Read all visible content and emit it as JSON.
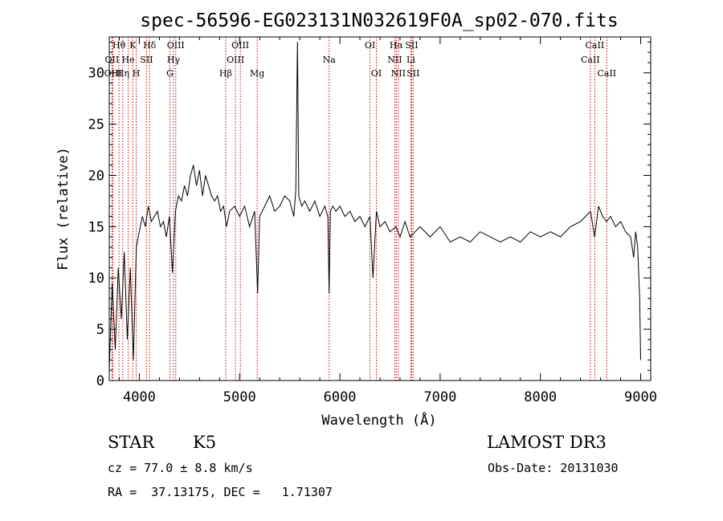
{
  "chart_data": {
    "type": "line",
    "title": "spec-56596-EG023131N032619F0A_sp02-070.fits",
    "xlabel": "Wavelength (Å)",
    "ylabel": "Flux (relative)",
    "xlim": [
      3700,
      9100
    ],
    "ylim": [
      0,
      33.5
    ],
    "x_ticks": [
      4000,
      5000,
      6000,
      7000,
      8000,
      9000
    ],
    "y_ticks": [
      0,
      5,
      10,
      15,
      20,
      25,
      30
    ],
    "grid": false,
    "series": [
      {
        "x": [
          3700,
          3730,
          3760,
          3790,
          3820,
          3850,
          3880,
          3910,
          3940,
          3970,
          4000,
          4030,
          4060,
          4090,
          4120,
          4150,
          4180,
          4210,
          4240,
          4270,
          4300,
          4330,
          4360,
          4390,
          4420,
          4450,
          4480,
          4510,
          4540,
          4570,
          4600,
          4630,
          4660,
          4690,
          4720,
          4750,
          4780,
          4810,
          4840,
          4870,
          4900,
          4950,
          5000,
          5050,
          5100,
          5150,
          5180,
          5200,
          5250,
          5300,
          5350,
          5400,
          5450,
          5500,
          5540,
          5560,
          5577,
          5590,
          5620,
          5650,
          5700,
          5750,
          5800,
          5850,
          5880,
          5893,
          5906,
          5930,
          5960,
          6000,
          6050,
          6100,
          6150,
          6200,
          6250,
          6300,
          6330,
          6365,
          6400,
          6450,
          6500,
          6560,
          6600,
          6650,
          6700,
          6750,
          6800,
          6900,
          7000,
          7100,
          7200,
          7300,
          7400,
          7500,
          7600,
          7700,
          7800,
          7900,
          8000,
          8100,
          8200,
          8300,
          8400,
          8450,
          8500,
          8540,
          8580,
          8620,
          8660,
          8700,
          8750,
          8800,
          8850,
          8900,
          8930,
          8950,
          8970,
          8990,
          9000
        ],
        "y": [
          1.0,
          9.5,
          3.0,
          11.0,
          6.0,
          12.5,
          4.0,
          11.0,
          2.0,
          13.0,
          14.5,
          16.0,
          15.0,
          17.0,
          15.5,
          16.0,
          16.5,
          15.0,
          15.5,
          14.0,
          16.0,
          10.5,
          16.5,
          18.0,
          17.5,
          19.0,
          18.0,
          20.0,
          21.0,
          19.0,
          20.5,
          18.0,
          20.0,
          19.0,
          18.0,
          17.5,
          18.0,
          16.5,
          17.0,
          15.0,
          16.5,
          17.0,
          16.0,
          17.0,
          15.0,
          16.5,
          8.5,
          16.0,
          17.0,
          18.0,
          16.5,
          17.0,
          18.0,
          17.5,
          16.0,
          18.5,
          33.0,
          18.0,
          17.0,
          17.5,
          16.5,
          17.5,
          16.0,
          17.0,
          16.0,
          8.5,
          16.5,
          17.0,
          16.5,
          17.0,
          16.0,
          16.5,
          15.5,
          16.0,
          15.0,
          16.0,
          10.0,
          16.5,
          15.0,
          15.5,
          14.5,
          15.0,
          14.0,
          15.5,
          14.0,
          14.5,
          15.0,
          14.0,
          15.0,
          13.5,
          14.0,
          13.5,
          14.5,
          14.0,
          13.5,
          14.0,
          13.5,
          14.5,
          14.0,
          14.5,
          14.0,
          15.0,
          15.5,
          16.0,
          16.5,
          14.0,
          17.0,
          16.0,
          15.5,
          16.0,
          15.0,
          15.5,
          14.5,
          14.0,
          12.0,
          14.5,
          13.0,
          8.0,
          2.0
        ]
      }
    ],
    "lines": [
      {
        "name": "Hθ",
        "wave": 3797,
        "row": 0
      },
      {
        "name": "OII",
        "wave": 3727,
        "row": 1
      },
      {
        "name": "OIII",
        "wave": 3737,
        "row": 2
      },
      {
        "name": "Hη",
        "wave": 3835,
        "row": 2
      },
      {
        "name": "K",
        "wave": 3934,
        "row": 0
      },
      {
        "name": "He",
        "wave": 3889,
        "row": 1
      },
      {
        "name": "H",
        "wave": 3969,
        "row": 2
      },
      {
        "name": "SII",
        "wave": 4072,
        "row": 1
      },
      {
        "name": "Hδ",
        "wave": 4102,
        "row": 0
      },
      {
        "name": "OIII",
        "wave": 4363,
        "row": 0
      },
      {
        "name": "Hγ",
        "wave": 4341,
        "row": 1
      },
      {
        "name": "G",
        "wave": 4305,
        "row": 2
      },
      {
        "name": "Hβ",
        "wave": 4861,
        "row": 2
      },
      {
        "name": "OIII",
        "wave": 5007,
        "row": 0
      },
      {
        "name": "OIII",
        "wave": 4959,
        "row": 1
      },
      {
        "name": "Mg",
        "wave": 5175,
        "row": 2
      },
      {
        "name": "Na",
        "wave": 5893,
        "row": 1
      },
      {
        "name": "OI",
        "wave": 6300,
        "row": 0
      },
      {
        "name": "OI",
        "wave": 6364,
        "row": 2
      },
      {
        "name": "Hα",
        "wave": 6563,
        "row": 0
      },
      {
        "name": "NII",
        "wave": 6548,
        "row": 1
      },
      {
        "name": "NII",
        "wave": 6583,
        "row": 2
      },
      {
        "name": "SII",
        "wave": 6716,
        "row": 0
      },
      {
        "name": "Li",
        "wave": 6708,
        "row": 1
      },
      {
        "name": "SII",
        "wave": 6731,
        "row": 2
      },
      {
        "name": "CaII",
        "wave": 8542,
        "row": 0
      },
      {
        "name": "CaII",
        "wave": 8498,
        "row": 1
      },
      {
        "name": "CaII",
        "wave": 8662,
        "row": 2
      }
    ]
  },
  "info": {
    "object_class": "STAR",
    "subclass": "K5",
    "survey": "LAMOST DR3",
    "cz": "cz = 77.0 ± 8.8 km/s",
    "obs_date": "Obs-Date: 20131030",
    "radec": "RA =  37.13175, DEC =   1.71307"
  },
  "colors": {
    "line_marker": "#cc0000",
    "spectrum": "#000000"
  }
}
